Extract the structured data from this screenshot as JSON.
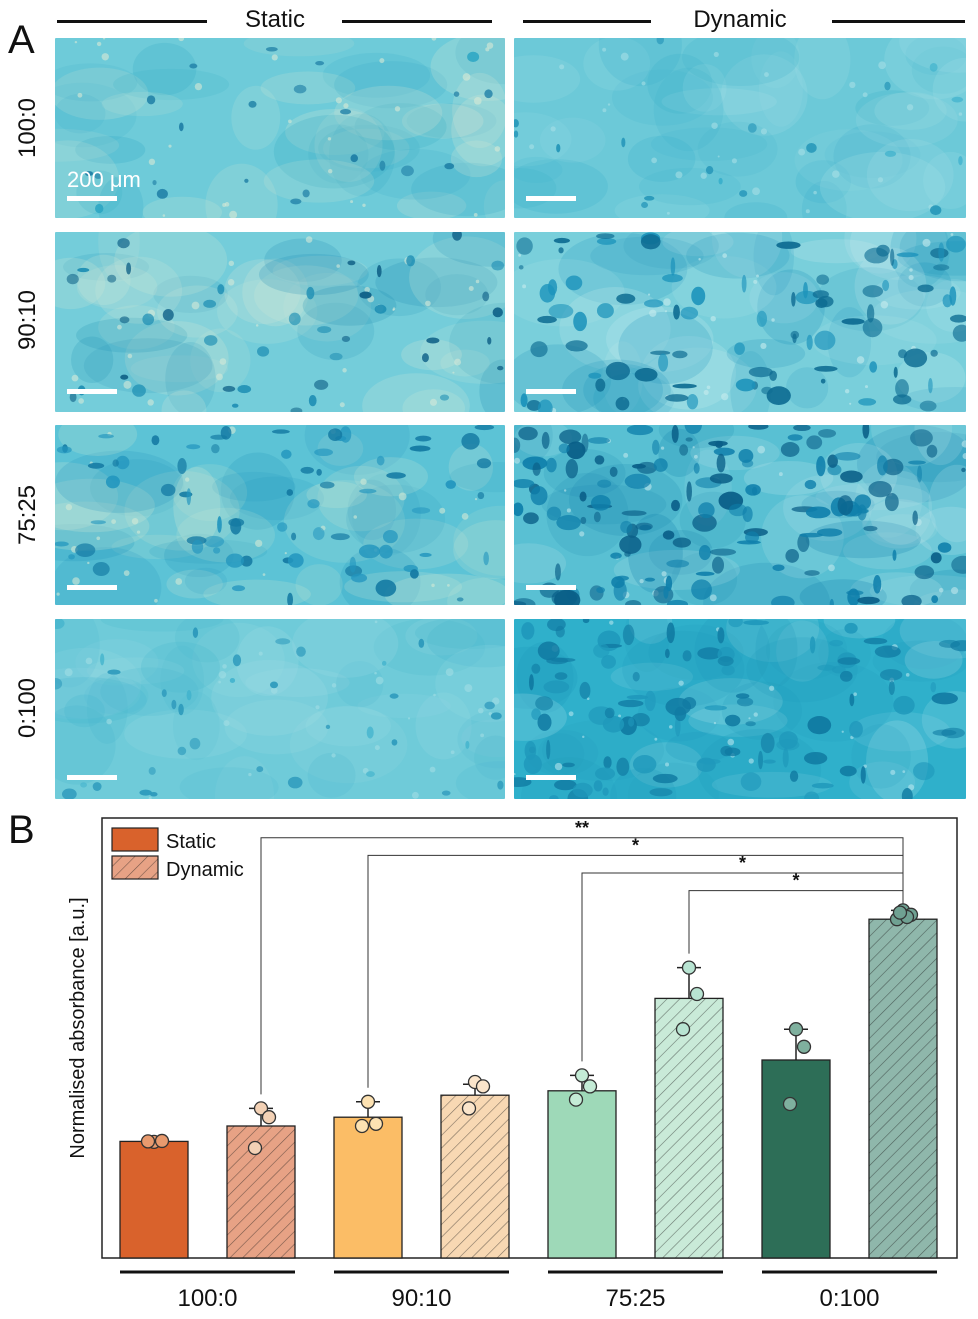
{
  "panel_a": {
    "letter": "A",
    "columns": [
      "Static",
      "Dynamic"
    ],
    "rows": [
      "100:0",
      "90:10",
      "75:25",
      "0:100"
    ],
    "scale_bar_label": "200 μm",
    "tiles": [
      {
        "row": "100:0",
        "column": "Static",
        "base": "#6ecbd9",
        "dot": "#2fa8c4",
        "dark": "#1f7fa6",
        "density": 0.25,
        "pale": "#d9e9d6"
      },
      {
        "row": "100:0",
        "column": "Dynamic",
        "base": "#6cc9d8",
        "dot": "#39afcb",
        "dark": "#2495b8",
        "density": 0.2,
        "pale": "#a6e0e6"
      },
      {
        "row": "90:10",
        "column": "Static",
        "base": "#74cdda",
        "dot": "#1f8fb4",
        "dark": "#0e5f86",
        "density": 0.45,
        "pale": "#d6ead8"
      },
      {
        "row": "90:10",
        "column": "Dynamic",
        "base": "#79cfdb",
        "dot": "#1c93bb",
        "dark": "#0f6d93",
        "density": 1.0,
        "pale": "#c8ecef"
      },
      {
        "row": "75:25",
        "column": "Static",
        "base": "#5cc3d6",
        "dot": "#2396be",
        "dark": "#147aa3",
        "density": 0.8,
        "pale": "#d4ead5"
      },
      {
        "row": "75:25",
        "column": "Dynamic",
        "base": "#59c0d3",
        "dot": "#0f7fab",
        "dark": "#0a5f88",
        "density": 1.6,
        "pale": "#bfe7ec"
      },
      {
        "row": "0:100",
        "column": "Static",
        "base": "#6fcbd9",
        "dot": "#44b4cd",
        "dark": "#2b98bb",
        "density": 0.4,
        "pale": "#a2dde5"
      },
      {
        "row": "0:100",
        "column": "Dynamic",
        "base": "#2fb0cb",
        "dot": "#1f98bb",
        "dark": "#107aa2",
        "density": 1.2,
        "pale": "#b6e6ee"
      }
    ]
  },
  "panel_b": {
    "letter": "B",
    "chart_data": {
      "type": "bar",
      "ylabel": "Normalised absorbance [a.u.]",
      "ylim": [
        0,
        1.0
      ],
      "y_ticks_shown": false,
      "legend": {
        "position": "top-left",
        "entries": [
          {
            "label": "Static",
            "pattern": "solid"
          },
          {
            "label": "Dynamic",
            "pattern": "hatched"
          }
        ]
      },
      "categories": [
        "100:0",
        "90:10",
        "75:25",
        "0:100"
      ],
      "bars": [
        {
          "category": "100:0",
          "condition": "Static",
          "value": 0.265,
          "err": 0.003,
          "points": [
            0.264,
            0.266,
            0.265
          ],
          "fill": "#d9622c",
          "point_fill": "#e89a6e",
          "hatched": false
        },
        {
          "category": "100:0",
          "condition": "Dynamic",
          "value": 0.3,
          "err": 0.04,
          "points": [
            0.34,
            0.32,
            0.25
          ],
          "fill": "#e7a285",
          "point_fill": "#f3d1b5",
          "hatched": true
        },
        {
          "category": "90:10",
          "condition": "Static",
          "value": 0.32,
          "err": 0.035,
          "points": [
            0.355,
            0.305,
            0.3
          ],
          "fill": "#fbbd66",
          "point_fill": "#fde2b2",
          "hatched": false
        },
        {
          "category": "90:10",
          "condition": "Dynamic",
          "value": 0.37,
          "err": 0.025,
          "points": [
            0.4,
            0.39,
            0.34
          ],
          "fill": "#f8d8b3",
          "point_fill": "#fbe5cb",
          "hatched": true
        },
        {
          "category": "75:25",
          "condition": "Static",
          "value": 0.38,
          "err": 0.035,
          "points": [
            0.415,
            0.39,
            0.36
          ],
          "fill": "#9ed9b8",
          "point_fill": "#c4ebd6",
          "hatched": false
        },
        {
          "category": "75:25",
          "condition": "Dynamic",
          "value": 0.59,
          "err": 0.07,
          "points": [
            0.66,
            0.6,
            0.52
          ],
          "fill": "#c9ead8",
          "point_fill": "#b8e4d2",
          "hatched": true
        },
        {
          "category": "0:100",
          "condition": "Static",
          "value": 0.45,
          "err": 0.07,
          "points": [
            0.52,
            0.48,
            0.35
          ],
          "fill": "#2d6e57",
          "point_fill": "#7fb09e",
          "hatched": false
        },
        {
          "category": "0:100",
          "condition": "Dynamic",
          "value": 0.77,
          "err": 0.02,
          "points": [
            0.79,
            0.78,
            0.77,
            0.775,
            0.785
          ],
          "fill": "#8fb7ab",
          "point_fill": "#6fa192",
          "hatched": true
        }
      ],
      "significance": [
        {
          "from": "100:0 Dynamic",
          "to": "0:100 Dynamic",
          "label": "**"
        },
        {
          "from": "90:10 Static",
          "to": "0:100 Dynamic",
          "label": "*"
        },
        {
          "from": "75:25 Static",
          "to": "0:100 Dynamic",
          "label": "*"
        },
        {
          "from": "75:25 Dynamic",
          "to": "0:100 Dynamic",
          "label": "*"
        }
      ]
    }
  }
}
